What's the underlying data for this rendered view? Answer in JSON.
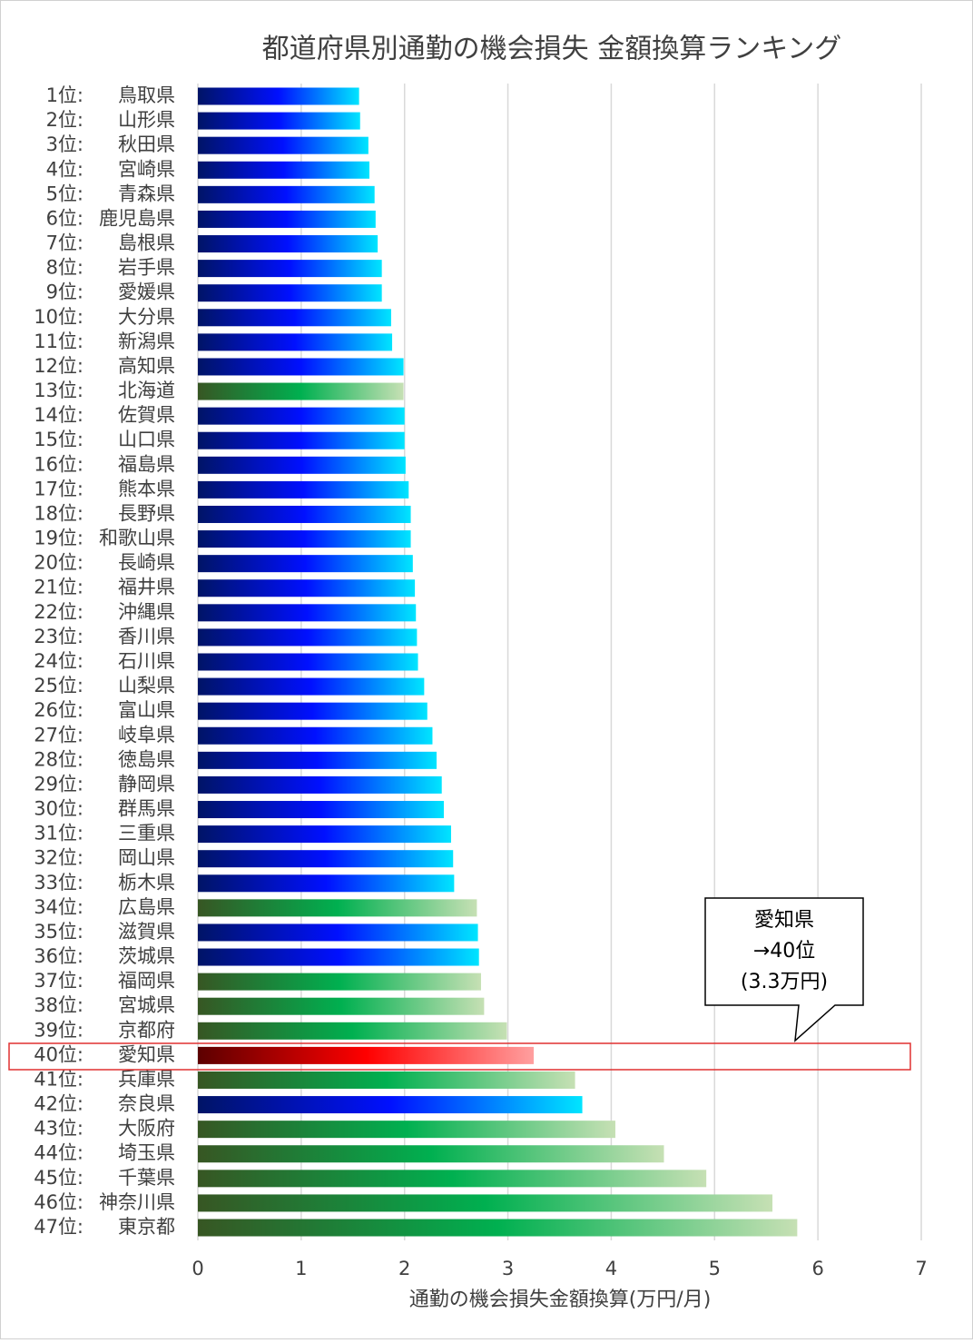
{
  "chart_data": {
    "type": "bar",
    "orientation": "horizontal",
    "title": "都道府県別通勤の機会損失 金額換算ランキング",
    "xlabel": "通勤の機会損失金額換算(万円/月)",
    "ranks": [
      "1位:",
      "2位:",
      "3位:",
      "4位:",
      "5位:",
      "6位:",
      "7位:",
      "8位:",
      "9位:",
      "10位:",
      "11位:",
      "12位:",
      "13位:",
      "14位:",
      "15位:",
      "16位:",
      "17位:",
      "18位:",
      "19位:",
      "20位:",
      "21位:",
      "22位:",
      "23位:",
      "24位:",
      "25位:",
      "26位:",
      "27位:",
      "28位:",
      "29位:",
      "30位:",
      "31位:",
      "32位:",
      "33位:",
      "34位:",
      "35位:",
      "36位:",
      "37位:",
      "38位:",
      "39位:",
      "40位:",
      "41位:",
      "42位:",
      "43位:",
      "44位:",
      "45位:",
      "46位:",
      "47位:"
    ],
    "categories": [
      "鳥取県",
      "山形県",
      "秋田県",
      "宮崎県",
      "青森県",
      "鹿児島県",
      "島根県",
      "岩手県",
      "愛媛県",
      "大分県",
      "新潟県",
      "高知県",
      "北海道",
      "佐賀県",
      "山口県",
      "福島県",
      "熊本県",
      "長野県",
      "和歌山県",
      "長崎県",
      "福井県",
      "沖縄県",
      "香川県",
      "石川県",
      "山梨県",
      "富山県",
      "岐阜県",
      "徳島県",
      "静岡県",
      "群馬県",
      "三重県",
      "岡山県",
      "栃木県",
      "広島県",
      "滋賀県",
      "茨城県",
      "福岡県",
      "宮城県",
      "京都府",
      "愛知県",
      "兵庫県",
      "奈良県",
      "大阪府",
      "埼玉県",
      "千葉県",
      "神奈川県",
      "東京都"
    ],
    "values": [
      1.56,
      1.57,
      1.65,
      1.66,
      1.71,
      1.72,
      1.74,
      1.78,
      1.78,
      1.87,
      1.88,
      1.99,
      1.99,
      2.0,
      2.0,
      2.01,
      2.04,
      2.06,
      2.06,
      2.08,
      2.1,
      2.11,
      2.12,
      2.13,
      2.19,
      2.22,
      2.27,
      2.31,
      2.36,
      2.38,
      2.45,
      2.47,
      2.48,
      2.7,
      2.71,
      2.72,
      2.74,
      2.77,
      2.99,
      3.25,
      3.65,
      3.72,
      4.04,
      4.51,
      4.92,
      5.56,
      5.8
    ],
    "colors": [
      "#0000ff",
      "#0000ff",
      "#0000ff",
      "#0000ff",
      "#0000ff",
      "#0000ff",
      "#0000ff",
      "#0000ff",
      "#0000ff",
      "#0000ff",
      "#0000ff",
      "#0000ff",
      "#00b050",
      "#0000ff",
      "#0000ff",
      "#0000ff",
      "#0000ff",
      "#0000ff",
      "#0000ff",
      "#0000ff",
      "#0000ff",
      "#0000ff",
      "#0000ff",
      "#0000ff",
      "#0000ff",
      "#0000ff",
      "#0000ff",
      "#0000ff",
      "#0000ff",
      "#0000ff",
      "#0000ff",
      "#0000ff",
      "#0000ff",
      "#00b050",
      "#0000ff",
      "#0000ff",
      "#00b050",
      "#00b050",
      "#00b050",
      "#ff0000",
      "#00b050",
      "#0000ff",
      "#00b050",
      "#00b050",
      "#00b050",
      "#00b050",
      "#00b050"
    ],
    "gradients": {
      "#0000ff": [
        "#001466",
        "#0010ff",
        "#00e5ff"
      ],
      "#00b050": [
        "#375623",
        "#00b050",
        "#c6e0b4"
      ],
      "#ff0000": [
        "#5c0000",
        "#ff0000",
        "#ff9f9f"
      ]
    },
    "xlim": [
      0,
      7
    ],
    "xticks": [
      0,
      1,
      2,
      3,
      4,
      5,
      6,
      7
    ],
    "grid": true,
    "annotation": [
      "愛知県",
      "→40位",
      "(3.3万円)"
    ]
  }
}
